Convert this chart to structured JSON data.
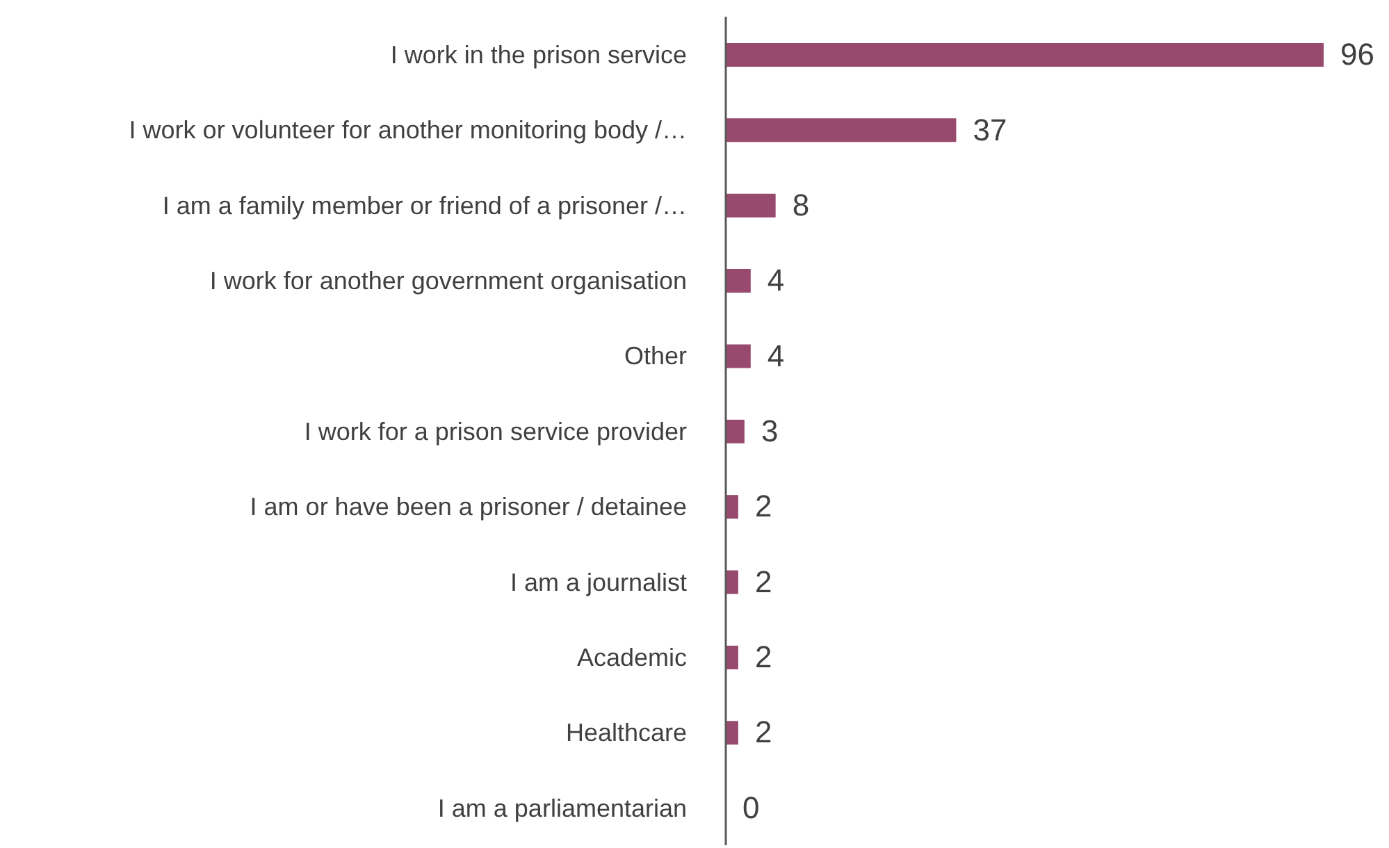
{
  "chart_data": {
    "type": "bar",
    "orientation": "horizontal",
    "categories": [
      "I work in the prison service",
      "I work or volunteer for another monitoring body /…",
      "I am a family member or friend of a prisoner /…",
      "I work for another government organisation",
      "Other",
      "I work for a prison service provider",
      "I am or have been a prisoner / detainee",
      "I am a journalist",
      "Academic",
      "Healthcare",
      "I am a parliamentarian"
    ],
    "values": [
      96,
      37,
      8,
      4,
      4,
      3,
      2,
      2,
      2,
      2,
      0
    ],
    "color": "#984a6e",
    "data_labels": true
  }
}
